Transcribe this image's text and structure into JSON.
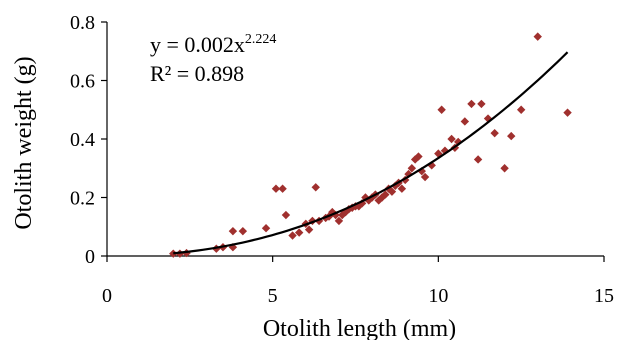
{
  "chart_data": {
    "type": "scatter",
    "xlabel": "Otolith length (mm)",
    "ylabel": "Otolith weight (g)",
    "xlim": [
      0,
      15
    ],
    "ylim": [
      0,
      0.8
    ],
    "x_ticks": [
      "0",
      "5",
      "10",
      "15"
    ],
    "y_ticks": [
      "0",
      "0.2",
      "0.4",
      "0.6",
      "0.8"
    ],
    "grid": false,
    "marker_color": "#a0302e",
    "trendline_color": "#000000",
    "trendline": {
      "type": "power",
      "a": 0.002,
      "b": 2.224,
      "x_range": [
        2.0,
        13.9
      ],
      "equation_text": "y = 0.002x",
      "exponent_text": "2.224",
      "r2_text": "R² = 0.898"
    },
    "points": [
      [
        2.0,
        0.008
      ],
      [
        2.2,
        0.008
      ],
      [
        2.4,
        0.01
      ],
      [
        3.3,
        0.025
      ],
      [
        3.5,
        0.03
      ],
      [
        3.8,
        0.03
      ],
      [
        3.8,
        0.085
      ],
      [
        4.1,
        0.085
      ],
      [
        4.8,
        0.095
      ],
      [
        5.1,
        0.23
      ],
      [
        5.3,
        0.23
      ],
      [
        5.4,
        0.14
      ],
      [
        5.6,
        0.07
      ],
      [
        5.8,
        0.08
      ],
      [
        6.0,
        0.11
      ],
      [
        6.1,
        0.09
      ],
      [
        6.2,
        0.12
      ],
      [
        6.3,
        0.235
      ],
      [
        6.4,
        0.12
      ],
      [
        6.6,
        0.13
      ],
      [
        6.7,
        0.135
      ],
      [
        6.8,
        0.15
      ],
      [
        6.9,
        0.14
      ],
      [
        7.0,
        0.12
      ],
      [
        7.1,
        0.14
      ],
      [
        7.2,
        0.15
      ],
      [
        7.3,
        0.16
      ],
      [
        7.4,
        0.165
      ],
      [
        7.5,
        0.17
      ],
      [
        7.6,
        0.17
      ],
      [
        7.7,
        0.18
      ],
      [
        7.8,
        0.2
      ],
      [
        7.9,
        0.19
      ],
      [
        8.0,
        0.2
      ],
      [
        8.1,
        0.21
      ],
      [
        8.2,
        0.19
      ],
      [
        8.3,
        0.2
      ],
      [
        8.4,
        0.21
      ],
      [
        8.5,
        0.23
      ],
      [
        8.6,
        0.22
      ],
      [
        8.7,
        0.24
      ],
      [
        8.8,
        0.25
      ],
      [
        8.9,
        0.23
      ],
      [
        9.0,
        0.26
      ],
      [
        9.1,
        0.28
      ],
      [
        9.2,
        0.3
      ],
      [
        9.3,
        0.33
      ],
      [
        9.4,
        0.34
      ],
      [
        9.5,
        0.29
      ],
      [
        9.6,
        0.27
      ],
      [
        9.8,
        0.31
      ],
      [
        10.0,
        0.35
      ],
      [
        10.1,
        0.5
      ],
      [
        10.2,
        0.36
      ],
      [
        10.4,
        0.4
      ],
      [
        10.5,
        0.37
      ],
      [
        10.6,
        0.39
      ],
      [
        10.8,
        0.46
      ],
      [
        11.0,
        0.52
      ],
      [
        11.2,
        0.33
      ],
      [
        11.3,
        0.52
      ],
      [
        11.5,
        0.47
      ],
      [
        11.7,
        0.42
      ],
      [
        12.0,
        0.3
      ],
      [
        12.2,
        0.41
      ],
      [
        12.5,
        0.5
      ],
      [
        13.0,
        0.75
      ],
      [
        13.9,
        0.49
      ]
    ]
  }
}
